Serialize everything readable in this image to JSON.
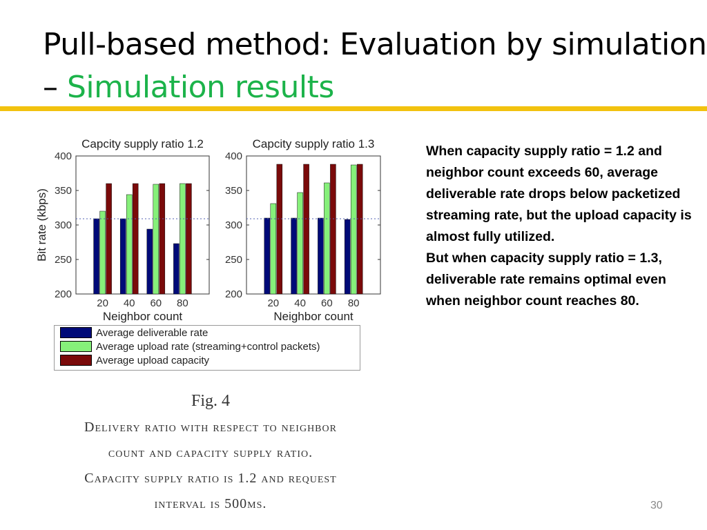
{
  "slide": {
    "title_main": "Pull-based method: Evaluation by simulation – ",
    "title_accent": "Simulation results",
    "accent_color": "#1cb34a",
    "rule_color": "#f2c20f",
    "side_text_1": "When capacity supply ratio = 1.2 and neighbor count exceeds 60, average deliverable rate drops below packetized streaming rate, but the upload capacity is almost fully utilized.",
    "side_text_2": "But when capacity supply ratio = 1.3, deliverable rate remains optimal even when neighbor count reaches 80.",
    "page_number": "30"
  },
  "caption": {
    "fig": "Fig. 4",
    "line1": "Delivery ratio with respect to neighbor",
    "line2": "count and capacity supply ratio.",
    "line3": "Capacity supply ratio is 1.2 and request",
    "line4": "interval is 500ms."
  },
  "legend": [
    {
      "name": "Average deliverable rate",
      "color": "#000a78"
    },
    {
      "name": "Average upload rate (streaming+control packets)",
      "color": "#86f07a"
    },
    {
      "name": "Average upload capacity",
      "color": "#7a0a0a"
    }
  ],
  "chart_data": [
    {
      "type": "bar",
      "title": "Capcity supply ratio 1.2",
      "xlabel": "Neighbor count",
      "ylabel": "Bit rate (kbps)",
      "categories": [
        "20",
        "40",
        "60",
        "80"
      ],
      "ylim": [
        200,
        400
      ],
      "yticks": [
        "200",
        "250",
        "300",
        "350",
        "400"
      ],
      "reference_line": 309,
      "series": [
        {
          "name": "Average deliverable rate",
          "values": [
            309,
            309,
            294,
            273
          ]
        },
        {
          "name": "Average upload rate (streaming+control packets)",
          "values": [
            320,
            344,
            359,
            360
          ]
        },
        {
          "name": "Average upload capacity",
          "values": [
            360,
            360,
            360,
            360
          ]
        }
      ]
    },
    {
      "type": "bar",
      "title": "Capcity supply ratio 1.3",
      "xlabel": "Neighbor count",
      "ylabel": "",
      "categories": [
        "20",
        "40",
        "60",
        "80"
      ],
      "ylim": [
        200,
        400
      ],
      "yticks": [
        "200",
        "250",
        "300",
        "350",
        "400"
      ],
      "reference_line": 309,
      "series": [
        {
          "name": "Average deliverable rate",
          "values": [
            310,
            310,
            310,
            308
          ]
        },
        {
          "name": "Average upload rate (streaming+control packets)",
          "values": [
            331,
            347,
            361,
            387
          ]
        },
        {
          "name": "Average upload capacity",
          "values": [
            388,
            388,
            388,
            388
          ]
        }
      ]
    }
  ]
}
